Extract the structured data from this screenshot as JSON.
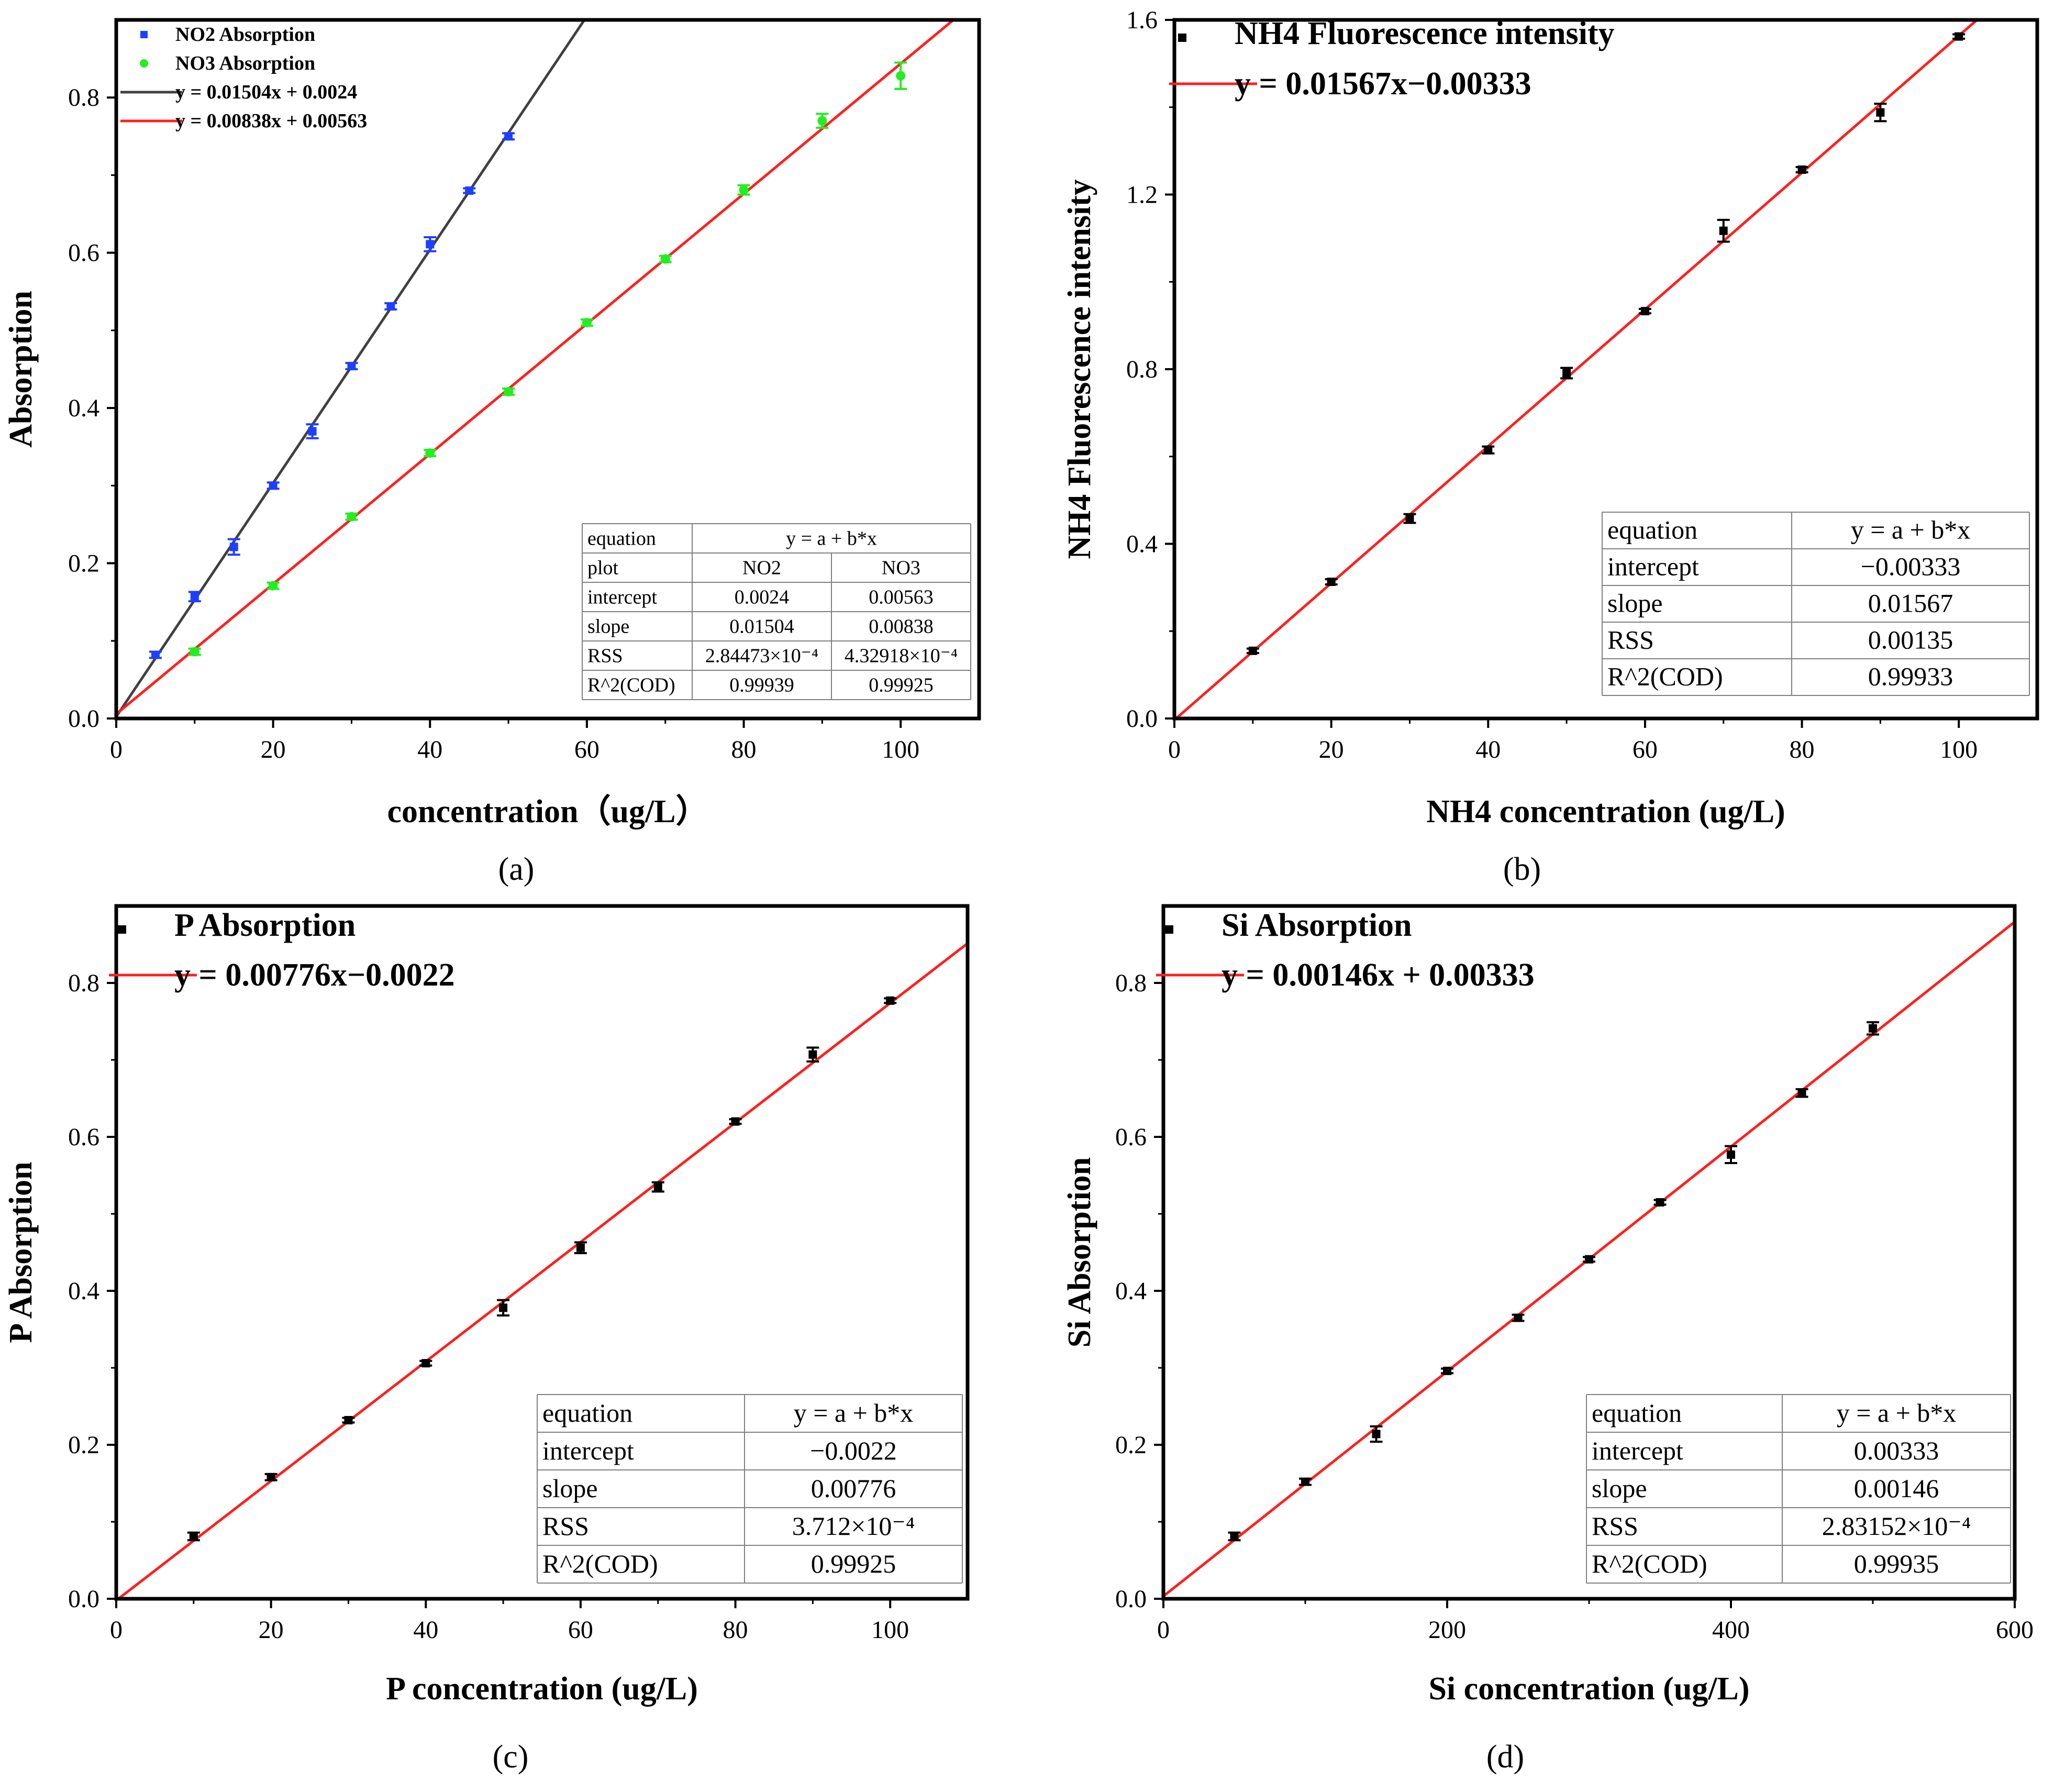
{
  "figure": {
    "colors": {
      "no2_marker": "#1f3fff",
      "no3_marker": "#22ee22",
      "no2_fit_line": "#404040",
      "red_fit_line": "#ff1f1f",
      "black": "#000000"
    }
  },
  "chart_data": [
    {
      "id": "a",
      "type": "scatter",
      "caption": "(a)",
      "xlabel": "concentration（ug/L）",
      "ylabel": "Absorption",
      "xlim": [
        0,
        110
      ],
      "ylim": [
        0,
        0.9
      ],
      "xticks": [
        0,
        20,
        40,
        60,
        80,
        100
      ],
      "yticks": [
        0.0,
        0.2,
        0.4,
        0.6,
        0.8
      ],
      "xtick_labels": [
        "0",
        "20",
        "40",
        "60",
        "80",
        "100"
      ],
      "ytick_labels": [
        "0.0",
        "0.2",
        "0.4",
        "0.6",
        "0.8"
      ],
      "series": [
        {
          "name": "NO2 Absorption",
          "legend": "NO2 Absorption",
          "marker": "square",
          "color": "#1f3fff",
          "x": [
            5,
            10,
            15,
            20,
            25,
            30,
            35,
            40,
            45,
            50
          ],
          "y": [
            0.082,
            0.157,
            0.221,
            0.3,
            0.37,
            0.454,
            0.531,
            0.611,
            0.68,
            0.75
          ],
          "err": [
            0.004,
            0.006,
            0.01,
            0.004,
            0.009,
            0.004,
            0.004,
            0.009,
            0.003,
            0.004
          ]
        },
        {
          "name": "NO3 Absorption",
          "legend": "NO3 Absorption",
          "marker": "circle",
          "color": "#22ee22",
          "x": [
            10,
            20,
            30,
            40,
            50,
            60,
            70,
            80,
            90,
            100
          ],
          "y": [
            0.086,
            0.171,
            0.26,
            0.342,
            0.421,
            0.51,
            0.592,
            0.681,
            0.77,
            0.828
          ],
          "err": [
            0.004,
            0.004,
            0.004,
            0.004,
            0.004,
            0.004,
            0.004,
            0.006,
            0.009,
            0.017
          ]
        }
      ],
      "fits": [
        {
          "legend": "y = 0.01504x + 0.0024",
          "slope": 0.01504,
          "intercept": 0.0024,
          "color": "#404040",
          "x_range": [
            0,
            60
          ]
        },
        {
          "legend": "y = 0.00838x + 0.00563",
          "slope": 0.00838,
          "intercept": 0.00563,
          "color": "#ff1f1f",
          "x_range": [
            0,
            107
          ]
        }
      ],
      "table": {
        "rows": [
          [
            "equation",
            "y = a + b*x",
            ""
          ],
          [
            "plot",
            "NO2",
            "NO3"
          ],
          [
            "intercept",
            "0.0024",
            "0.00563"
          ],
          [
            "slope",
            "0.01504",
            "0.00838"
          ],
          [
            "RSS",
            "2.84473×10⁻⁴",
            "4.32918×10⁻⁴"
          ],
          [
            "R^2(COD)",
            "0.99939",
            "0.99925"
          ]
        ]
      }
    },
    {
      "id": "b",
      "type": "scatter",
      "caption": "(b)",
      "xlabel": "NH4 concentration (ug/L)",
      "ylabel": "NH4 Fluorescence intensity",
      "xlim": [
        0,
        110
      ],
      "ylim": [
        0,
        1.6
      ],
      "xticks": [
        0,
        20,
        40,
        60,
        80,
        100
      ],
      "yticks": [
        0.0,
        0.4,
        0.8,
        1.2,
        1.6
      ],
      "xtick_labels": [
        "0",
        "20",
        "40",
        "60",
        "80",
        "100"
      ],
      "ytick_labels": [
        "0.0",
        "0.4",
        "0.8",
        "1.2",
        "1.6"
      ],
      "series": [
        {
          "name": "NH4 Fluorescence intensity",
          "legend": "NH4 Fluorescence intensity",
          "marker": "square",
          "color": "#000000",
          "x": [
            10,
            20,
            30,
            40,
            50,
            60,
            70,
            80,
            90,
            100
          ],
          "y": [
            0.155,
            0.313,
            0.458,
            0.615,
            0.791,
            0.933,
            1.117,
            1.257,
            1.388,
            1.562
          ],
          "err": [
            0.005,
            0.006,
            0.01,
            0.008,
            0.012,
            0.005,
            0.025,
            0.006,
            0.02,
            0.005
          ]
        }
      ],
      "fits": [
        {
          "legend": "y = 0.01567x−0.00333",
          "slope": 0.01567,
          "intercept": -0.00333,
          "color": "#ff1f1f",
          "x_range": [
            0,
            102.3
          ]
        }
      ],
      "table": {
        "rows": [
          [
            "equation",
            "y = a + b*x"
          ],
          [
            "intercept",
            "−0.00333"
          ],
          [
            "slope",
            "0.01567"
          ],
          [
            "RSS",
            "0.00135"
          ],
          [
            "R^2(COD)",
            "0.99933"
          ]
        ]
      }
    },
    {
      "id": "c",
      "type": "scatter",
      "caption": "(c)",
      "xlabel": "P concentration (ug/L)",
      "ylabel": "P Absorption",
      "xlim": [
        0,
        110
      ],
      "ylim": [
        0,
        0.9
      ],
      "xticks": [
        0,
        20,
        40,
        60,
        80,
        100
      ],
      "yticks": [
        0.0,
        0.2,
        0.4,
        0.6,
        0.8
      ],
      "xtick_labels": [
        "0",
        "20",
        "40",
        "60",
        "80",
        "100"
      ],
      "ytick_labels": [
        "0.0",
        "0.2",
        "0.4",
        "0.6",
        "0.8"
      ],
      "series": [
        {
          "name": "P Absorption",
          "legend": "P Absorption",
          "marker": "square",
          "color": "#000000",
          "x": [
            10,
            20,
            30,
            40,
            50,
            60,
            70,
            80,
            90,
            100
          ],
          "y": [
            0.081,
            0.158,
            0.232,
            0.306,
            0.378,
            0.456,
            0.535,
            0.62,
            0.707,
            0.777
          ],
          "err": [
            0.005,
            0.004,
            0.003,
            0.003,
            0.01,
            0.007,
            0.006,
            0.003,
            0.009,
            0.003
          ]
        }
      ],
      "fits": [
        {
          "legend": "y = 0.00776x−0.0022",
          "slope": 0.00776,
          "intercept": -0.0022,
          "color": "#ff1f1f",
          "x_range": [
            0,
            110
          ]
        }
      ],
      "table": {
        "rows": [
          [
            "equation",
            "y = a + b*x"
          ],
          [
            "intercept",
            "−0.0022"
          ],
          [
            "slope",
            "0.00776"
          ],
          [
            "RSS",
            "3.712×10⁻⁴"
          ],
          [
            "R^2(COD)",
            "0.99925"
          ]
        ]
      }
    },
    {
      "id": "d",
      "type": "scatter",
      "caption": "(d)",
      "xlabel": "Si concentration (ug/L)",
      "ylabel": "Si Absorption",
      "xlim": [
        0,
        600
      ],
      "ylim": [
        0,
        0.9
      ],
      "xticks": [
        0,
        200,
        400,
        600
      ],
      "yticks": [
        0.0,
        0.2,
        0.4,
        0.6,
        0.8
      ],
      "xtick_labels": [
        "0",
        "200",
        "400",
        "600"
      ],
      "ytick_labels": [
        "0.0",
        "0.2",
        "0.4",
        "0.6",
        "0.8"
      ],
      "series": [
        {
          "name": "Si Absorption",
          "legend": "Si Absorption",
          "marker": "square",
          "color": "#000000",
          "x": [
            50,
            100,
            150,
            200,
            250,
            300,
            350,
            400,
            450,
            500
          ],
          "y": [
            0.081,
            0.152,
            0.214,
            0.296,
            0.365,
            0.441,
            0.515,
            0.577,
            0.657,
            0.741
          ],
          "err": [
            0.005,
            0.004,
            0.01,
            0.003,
            0.004,
            0.003,
            0.003,
            0.011,
            0.005,
            0.008
          ]
        }
      ],
      "fits": [
        {
          "legend": "y = 0.00146x + 0.00333",
          "slope": 0.00146,
          "intercept": 0.00333,
          "color": "#ff1f1f",
          "x_range": [
            0,
            600
          ]
        }
      ],
      "table": {
        "rows": [
          [
            "equation",
            "y = a + b*x"
          ],
          [
            "intercept",
            "0.00333"
          ],
          [
            "slope",
            "0.00146"
          ],
          [
            "RSS",
            "2.83152×10⁻⁴"
          ],
          [
            "R^2(COD)",
            "0.99935"
          ]
        ]
      }
    }
  ]
}
